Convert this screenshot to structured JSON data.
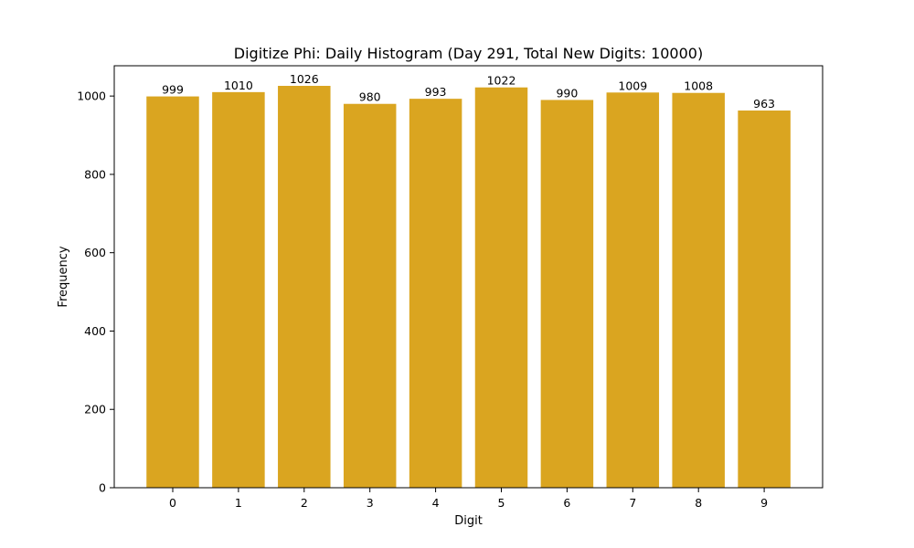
{
  "chart_data": {
    "type": "bar",
    "title": "Digitize Phi: Daily Histogram (Day 291, Total New Digits: 10000)",
    "xlabel": "Digit",
    "ylabel": "Frequency",
    "categories": [
      "0",
      "1",
      "2",
      "3",
      "4",
      "5",
      "6",
      "7",
      "8",
      "9"
    ],
    "values": [
      999,
      1010,
      1026,
      980,
      993,
      1022,
      990,
      1009,
      1008,
      963
    ],
    "data_labels": [
      "999",
      "1010",
      "1026",
      "980",
      "993",
      "1022",
      "990",
      "1009",
      "1008",
      "963"
    ],
    "y_ticks": [
      0,
      200,
      400,
      600,
      800,
      1000
    ],
    "y_tick_labels": [
      "0",
      "200",
      "400",
      "600",
      "800",
      "1000"
    ],
    "ylim": [
      0,
      1077.3
    ],
    "grid": false,
    "bar_color": "#DAA520"
  }
}
